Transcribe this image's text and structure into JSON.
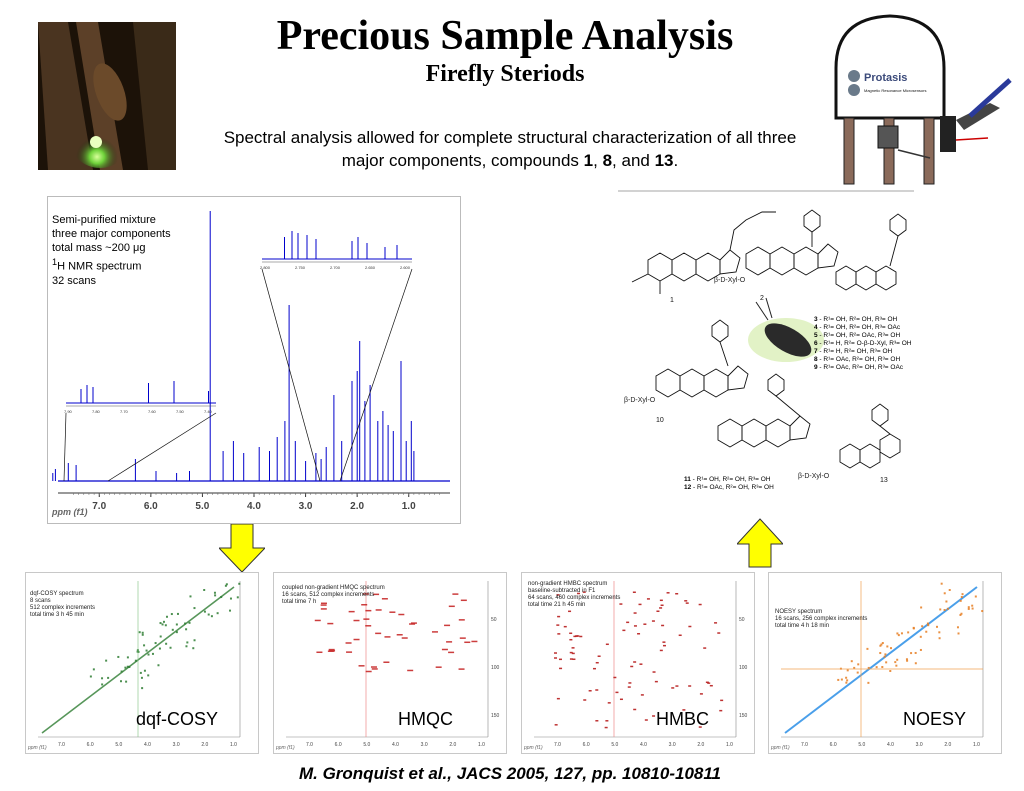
{
  "title": "Precious Sample Analysis",
  "subtitle": "Firefly Steriods",
  "description": {
    "part1": "Spectral analysis allowed for complete structural characterization of all three major components, compounds ",
    "c1": "1",
    "sep1": ", ",
    "c2": "8",
    "sep2": ", and ",
    "c3": "13",
    "end": "."
  },
  "magnet": {
    "brand": "Protasis",
    "tagline": "Magnetic Resonance Microsensors"
  },
  "spectrum": {
    "info": {
      "line1": "Semi-purified mixture",
      "line2": "three major components",
      "line3": "total mass ~200 μg",
      "line4_sup": "1",
      "line4": "H NMR spectrum",
      "line5": "32 scans"
    },
    "axis_label": "ppm (f1)",
    "ticks": [
      "7.0",
      "6.0",
      "5.0",
      "4.0",
      "3.0",
      "2.0",
      "1.0"
    ],
    "inset1_ticks": [
      "7.90",
      "7.80",
      "7.70",
      "7.60",
      "7.50",
      "7.40"
    ],
    "inset2_ticks": [
      "2.800",
      "2.750",
      "2.700",
      "2.650",
      "2.600"
    ]
  },
  "structures": {
    "legend": [
      {
        "num": "3",
        "text": " - R¹= OH, R²= OH, R³= OH"
      },
      {
        "num": "4",
        "text": " - R¹= OH, R²= OH, R³= OAc"
      },
      {
        "num": "5",
        "text": " - R¹= OH, R²= OAc, R³= OH"
      },
      {
        "num": "6",
        "text": " - R¹= H, R²= O-β-D-Xyl, R³= OH"
      },
      {
        "num": "7",
        "text": " - R¹= H, R²= OH, R³= OH"
      },
      {
        "num": "8",
        "text": " - R¹= OAc, R²= OH, R³= OH"
      },
      {
        "num": "9",
        "text": " - R¹= OAc, R²= OH, R³= OAc"
      }
    ],
    "legend2": [
      {
        "num": "11",
        "text": " - R¹= OH, R²= OH, R³= OH"
      },
      {
        "num": "12",
        "text": " - R¹= OAc, R²= OH, R³= OH"
      }
    ],
    "xyl_label": "β-D-Xyl-O",
    "compound_numbers": [
      "1",
      "2",
      "10",
      "13"
    ]
  },
  "panels": [
    {
      "label": "dqf-COSY",
      "info": [
        "dqf-COSY spectrum",
        "8 scans",
        "512 complex increments",
        "total time 3 h 45 min"
      ]
    },
    {
      "label": "HMQC",
      "info": [
        "coupled non-gradient HMQC spectrum",
        "16 scans, 512 complex increments",
        "total time 7 h"
      ]
    },
    {
      "label": "HMBC",
      "info": [
        "non-gradient HMBC spectrum",
        "baseline-subtracted in F1",
        "64 scans, 460 complex increments",
        "total time 21 h 45 min"
      ]
    },
    {
      "label": "NOESY",
      "info": [
        "NOESY spectrum",
        "16 scans, 256 complex increments",
        "total time 4 h 18 min"
      ]
    }
  ],
  "panel_ticks": [
    "7.0",
    "6.0",
    "5.0",
    "4.0",
    "3.0",
    "2.0",
    "1.0"
  ],
  "panel_axis_label": "ppm (f1)",
  "citation": "M. Gronquist et al., JACS 2005, 127, pp. 10810-10811",
  "colors": {
    "spectrum": "#0000cc",
    "arrow": "#ffff00",
    "cosy": "#2e7d32",
    "hmqc": "#c62828",
    "hmbc": "#b71c1c",
    "noesy": "#1e88e5"
  }
}
